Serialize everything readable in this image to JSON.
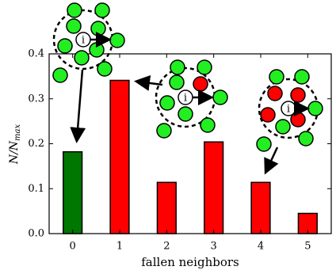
{
  "chart_data": {
    "type": "bar",
    "x": [
      0,
      1,
      2,
      3,
      4,
      5
    ],
    "values": [
      0.182,
      0.341,
      0.114,
      0.204,
      0.114,
      0.045
    ],
    "colors": [
      "#007700",
      "#ff0000",
      "#ff0000",
      "#ff0000",
      "#ff0000",
      "#ff0000"
    ],
    "xlim": [
      -0.5,
      5.5
    ],
    "xticks": [
      0,
      1,
      2,
      3,
      4,
      5
    ],
    "ylim": [
      0,
      0.4
    ],
    "yticks": [
      {
        "value": 0,
        "label": "0.0"
      },
      0.1,
      0.2,
      0.3,
      0.4
    ],
    "xlabel": "fallen neighbors",
    "ylabel": "N/N",
    "ylabel_subscript": "max",
    "diagram_label": "i"
  }
}
